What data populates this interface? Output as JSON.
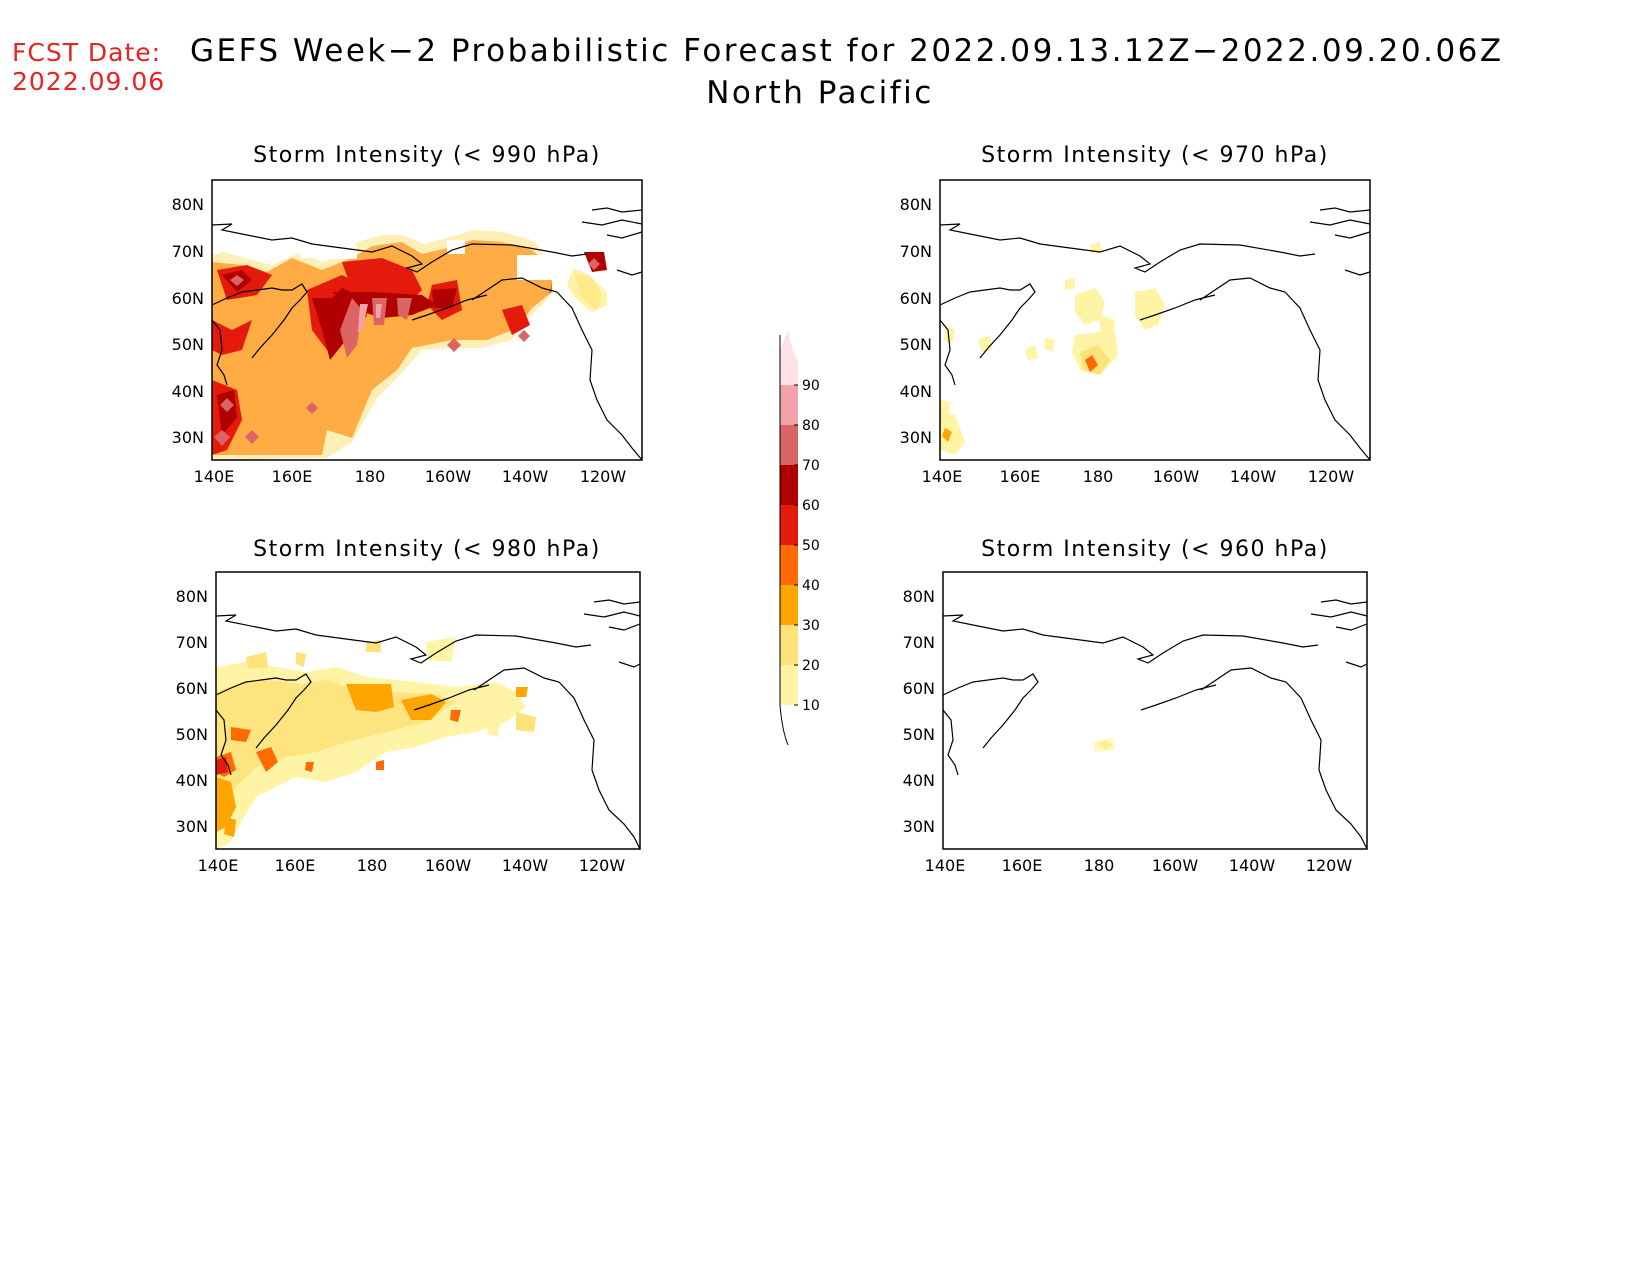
{
  "header": {
    "fcst_label": "FCST Date:",
    "fcst_date": "2022.09.06",
    "title_line1": "GEFS Week−2 Probabilistic Forecast for 2022.09.13.12Z−2022.09.20.06Z",
    "title_line2": "North Pacific"
  },
  "axes": {
    "lat_ticks": [
      "80N",
      "70N",
      "60N",
      "50N",
      "40N",
      "30N"
    ],
    "lon_ticks": [
      "140E",
      "160E",
      "180",
      "160W",
      "140W",
      "120W"
    ]
  },
  "panels": [
    {
      "id": "p990",
      "title": "Storm Intensity (< 990 hPa)"
    },
    {
      "id": "p970",
      "title": "Storm Intensity (< 970 hPa)"
    },
    {
      "id": "p980",
      "title": "Storm Intensity (< 980 hPa)"
    },
    {
      "id": "p960",
      "title": "Storm Intensity (< 960 hPa)"
    }
  ],
  "colorbar": {
    "levels": [
      "10",
      "20",
      "30",
      "40",
      "50",
      "60",
      "70",
      "80",
      "90"
    ],
    "colors": [
      "#fff3a6",
      "#fde27a",
      "#ffa500",
      "#ff6b00",
      "#e41a0c",
      "#b00000",
      "#db6464",
      "#f2a2a8",
      "#fde3e6"
    ]
  }
}
